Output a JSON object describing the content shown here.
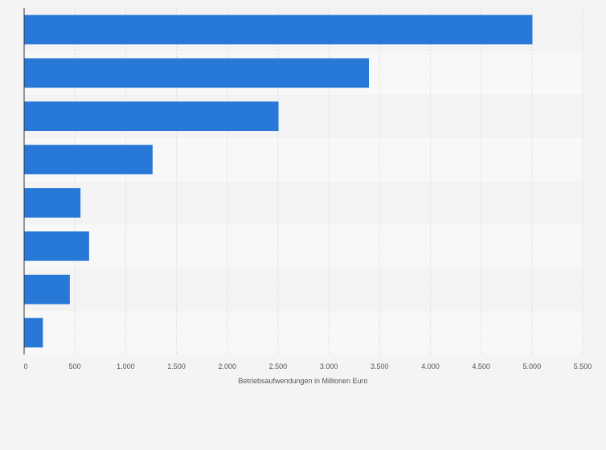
{
  "chart_data": {
    "type": "bar",
    "orientation": "horizontal",
    "categories": [
      "",
      "",
      "",
      "",
      "",
      "",
      "",
      ""
    ],
    "values": [
      5005,
      3395,
      2505,
      1265,
      555,
      640,
      450,
      185
    ],
    "xlabel": "Betriebsaufwendungen in Millionen Euro",
    "ylabel": "",
    "xlim": [
      0,
      5500
    ],
    "x_ticks": [
      0,
      500,
      1000,
      1500,
      2000,
      2500,
      3000,
      3500,
      4000,
      4500,
      5000,
      5500
    ],
    "x_tick_labels": [
      "0",
      "500",
      "1.000",
      "1.500",
      "2.000",
      "2.500",
      "3.000",
      "3.500",
      "4.000",
      "4.500",
      "5.000",
      "5.500"
    ],
    "grid": true,
    "colors": {
      "bar": "#2878d8",
      "band_dark": "#f3f3f3",
      "band_light": "#f8f8f8",
      "gridline": "#dcdcdc",
      "axis": "#333333"
    }
  }
}
